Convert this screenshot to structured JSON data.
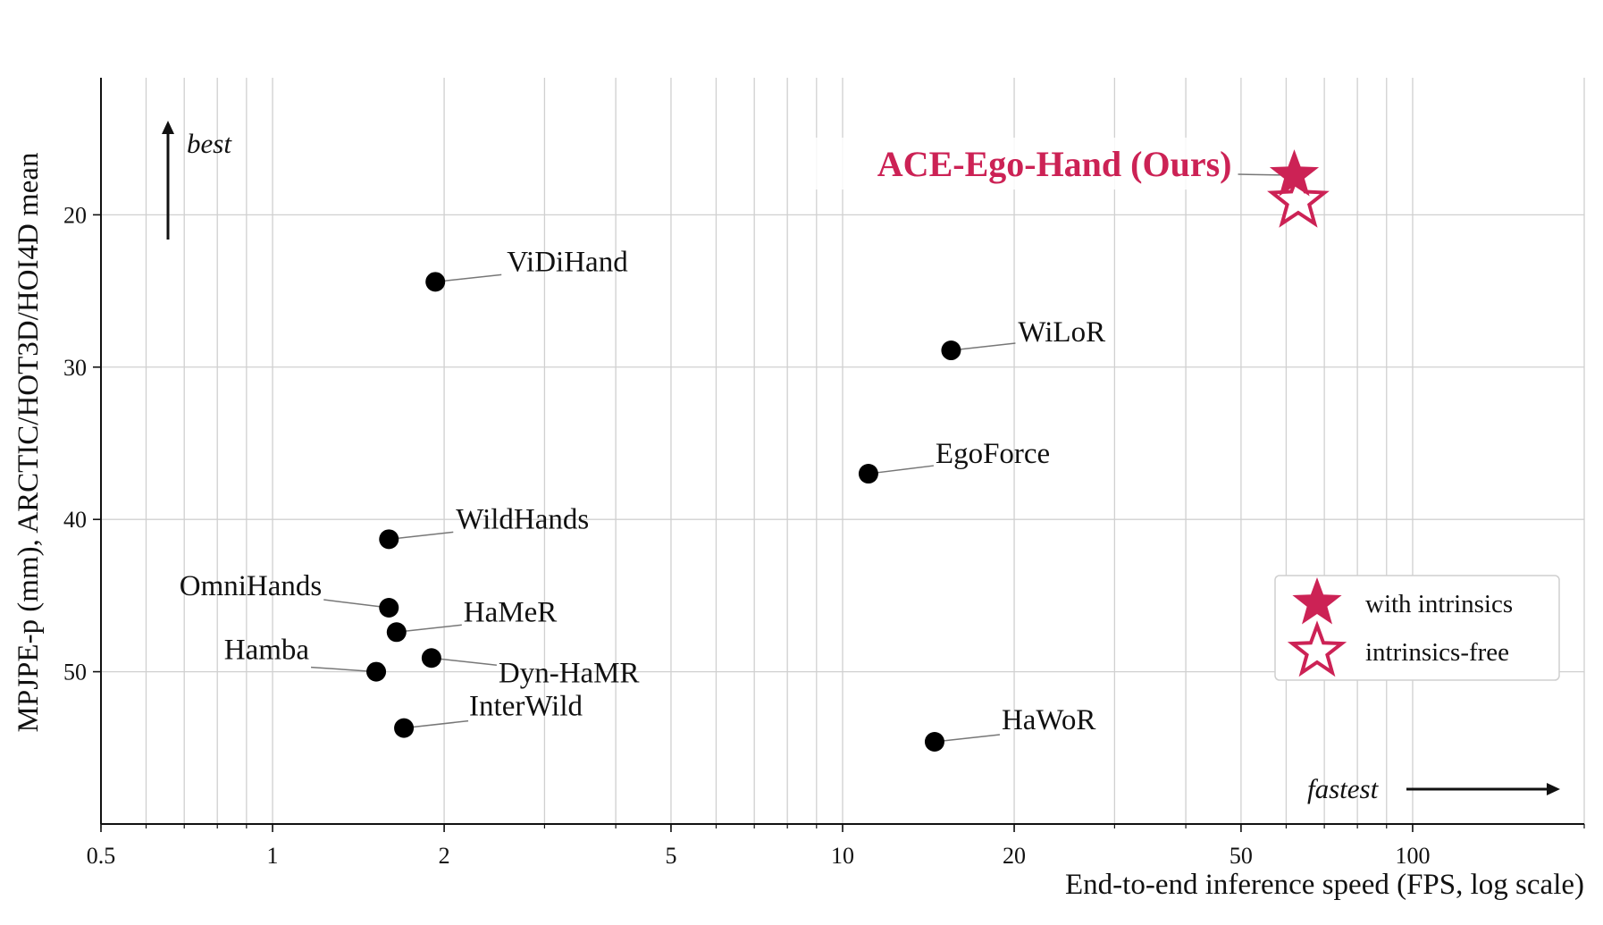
{
  "chart_data": {
    "type": "scatter",
    "xlabel": "End-to-end inference speed (FPS, log scale)",
    "ylabel": "MPJPE-p (mm), ARCTIC/HOT3D/HOI4D mean",
    "xscale": "log",
    "xlim": [
      0.5,
      200
    ],
    "ylim": [
      60,
      11
    ],
    "y_inverted": true,
    "grid": true,
    "x_ticks": [
      {
        "value": 0.5,
        "label": "0.5"
      },
      {
        "value": 1,
        "label": "1"
      },
      {
        "value": 2,
        "label": "2"
      },
      {
        "value": 5,
        "label": "5"
      },
      {
        "value": 10,
        "label": "10"
      },
      {
        "value": 20,
        "label": "20"
      },
      {
        "value": 50,
        "label": "50"
      },
      {
        "value": 100,
        "label": "100"
      }
    ],
    "y_ticks": [
      {
        "value": 20,
        "label": "20"
      },
      {
        "value": 30,
        "label": "30"
      },
      {
        "value": 40,
        "label": "40"
      },
      {
        "value": 50,
        "label": "50"
      }
    ],
    "points": [
      {
        "name": "ViDiHand",
        "x": 1.93,
        "y": 24.4
      },
      {
        "name": "WiLoR",
        "x": 15.5,
        "y": 28.9
      },
      {
        "name": "EgoForce",
        "x": 11.1,
        "y": 37.0
      },
      {
        "name": "WildHands",
        "x": 1.6,
        "y": 41.3
      },
      {
        "name": "OmniHands",
        "x": 1.6,
        "y": 45.8
      },
      {
        "name": "HaMeR",
        "x": 1.65,
        "y": 47.4
      },
      {
        "name": "Dyn-HaMR",
        "x": 1.9,
        "y": 49.1
      },
      {
        "name": "Hamba",
        "x": 1.52,
        "y": 50.0
      },
      {
        "name": "InterWild",
        "x": 1.7,
        "y": 53.7
      },
      {
        "name": "HaWoR",
        "x": 14.5,
        "y": 54.6
      }
    ],
    "ours": {
      "name": "ACE-Ego-Hand (Ours)",
      "with_intrinsics": {
        "x": 62.0,
        "y": 17.4
      },
      "intrinsics_free": {
        "x": 63.0,
        "y": 19.1
      }
    },
    "annotations": {
      "best": "best",
      "fastest": "fastest"
    },
    "legend": {
      "placement": "lower-right",
      "entries": [
        {
          "label": "with intrinsics",
          "marker": "filled-star"
        },
        {
          "label": "intrinsics-free",
          "marker": "hollow-star"
        }
      ]
    },
    "colors": {
      "ours": "#cc2255",
      "points": "#000000",
      "grid": "#d0d0d0"
    }
  }
}
